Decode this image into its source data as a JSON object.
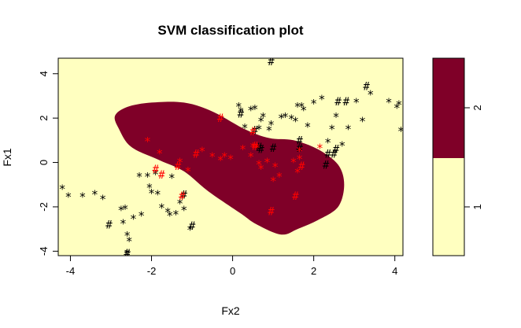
{
  "chart_data": {
    "type": "scatter",
    "title": "SVM classification plot",
    "xlabel": "Fx2",
    "ylabel": "Fx1",
    "xlim": [
      -4.3,
      4.2
    ],
    "ylim": [
      -4.2,
      4.7
    ],
    "xticks": [
      "-4",
      "-2",
      "0",
      "2",
      "4"
    ],
    "xtick_values": [
      -4,
      -2,
      0,
      2,
      4
    ],
    "yticks": [
      "-4",
      "-2",
      "0",
      "2",
      "4"
    ],
    "ytick_values": [
      -4,
      -2,
      0,
      2,
      4
    ],
    "colors": {
      "class1_region": "#ffffc0",
      "class2_region": "#7f0028",
      "class1_points": "#000000",
      "class2_points": "#ff0000"
    },
    "legend": {
      "position": "right",
      "levels": [
        "1",
        "2"
      ]
    },
    "decision_region_class2_outline": [
      [
        -2.8,
        1.5
      ],
      [
        -2.9,
        2.1
      ],
      [
        -2.6,
        2.5
      ],
      [
        -2.0,
        2.7
      ],
      [
        -1.2,
        2.7
      ],
      [
        -0.5,
        2.3
      ],
      [
        0.3,
        1.5
      ],
      [
        0.9,
        1.1
      ],
      [
        1.5,
        1.0
      ],
      [
        2.1,
        0.6
      ],
      [
        2.6,
        -0.1
      ],
      [
        2.75,
        -1.0
      ],
      [
        2.6,
        -2.0
      ],
      [
        2.1,
        -2.6
      ],
      [
        1.6,
        -3.0
      ],
      [
        1.2,
        -3.25
      ],
      [
        0.6,
        -2.8
      ],
      [
        0.2,
        -2.3
      ],
      [
        -0.6,
        -1.3
      ],
      [
        -1.2,
        -0.4
      ],
      [
        -1.8,
        0.1
      ],
      [
        -2.5,
        0.7
      ]
    ],
    "series": [
      {
        "name": "class 1",
        "x": [
          -4.2,
          -4.05,
          -3.7,
          -3.4,
          -3.2,
          -2.75,
          -2.65,
          -2.7,
          -2.6,
          -2.55,
          -2.6,
          -2.45,
          -2.25,
          -2.05,
          -2.0,
          -1.85,
          -1.75,
          -1.6,
          -1.55,
          -1.4,
          -1.3,
          -1.2,
          -1.05,
          -1.5,
          -2.1,
          -2.3,
          -1.9,
          0.15,
          0.2,
          0.3,
          0.45,
          0.55,
          0.65,
          0.7,
          0.75,
          0.9,
          0.95,
          1.2,
          1.3,
          1.45,
          1.55,
          1.6,
          1.7,
          1.75,
          1.85,
          2.0,
          2.2,
          2.35,
          2.45,
          2.55,
          2.7,
          2.85,
          3.05,
          3.2,
          3.4,
          3.85,
          4.1,
          4.15,
          4.05,
          0.2,
          1.65,
          1.65,
          0.7,
          0.55,
          0.65,
          1.0,
          2.35,
          2.5,
          2.55,
          2.6,
          2.8,
          3.3,
          -3.05,
          -2.6,
          -1.2,
          -1.0,
          0.95,
          2.3
        ],
        "y": [
          -1.1,
          -1.45,
          -1.45,
          -1.35,
          -1.55,
          -2.05,
          -2.0,
          -2.65,
          -3.2,
          -3.45,
          -4.0,
          -2.45,
          -2.3,
          -1.05,
          -1.3,
          -1.35,
          -1.95,
          -2.15,
          -2.3,
          -2.25,
          -1.75,
          -2.05,
          -2.95,
          -0.6,
          -0.55,
          -0.55,
          -0.45,
          2.6,
          2.4,
          1.65,
          2.45,
          2.5,
          1.6,
          1.95,
          2.15,
          1.55,
          1.8,
          2.1,
          2.15,
          2.05,
          1.95,
          2.6,
          2.6,
          2.45,
          1.7,
          2.75,
          2.95,
          1.0,
          1.6,
          2.15,
          0.85,
          1.6,
          2.8,
          1.95,
          3.15,
          2.8,
          2.7,
          1.5,
          2.55,
          2.2,
          0.65,
          1.0,
          0.6,
          1.45,
          0.7,
          0.65,
          0.4,
          0.4,
          0.6,
          2.75,
          2.75,
          3.45,
          -2.8,
          -4.1,
          -1.45,
          -2.85,
          4.55,
          -0.1
        ],
        "markers": [
          "*",
          "*",
          "*",
          "*",
          "*",
          "*",
          "*",
          "*",
          "*",
          "*",
          "*",
          "*",
          "*",
          "*",
          "*",
          "*",
          "*",
          "*",
          "*",
          "*",
          "*",
          "*",
          "*",
          "*",
          "*",
          "*",
          "*",
          "*",
          "*",
          "*",
          "*",
          "*",
          "*",
          "*",
          "*",
          "*",
          "*",
          "*",
          "*",
          "*",
          "*",
          "*",
          "*",
          "*",
          "*",
          "*",
          "*",
          "*",
          "*",
          "*",
          "*",
          "*",
          "*",
          "*",
          "*",
          "*",
          "*",
          "*",
          "*",
          "#",
          "#",
          "#",
          "#",
          "#",
          "#",
          "#",
          "#",
          "#",
          "#",
          "#",
          "#",
          "#",
          "#",
          "#",
          "#",
          "#",
          "#",
          "#"
        ]
      },
      {
        "name": "class 2",
        "x": [
          -2.1,
          -1.8,
          -1.3,
          -1.1,
          -0.75,
          -0.5,
          -0.3,
          -0.2,
          -0.05,
          0.25,
          0.45,
          0.5,
          0.6,
          0.65,
          0.7,
          0.85,
          1.0,
          1.05,
          1.15,
          1.5,
          1.6,
          1.65,
          1.65,
          2.15,
          -1.9,
          -1.75,
          -1.35,
          -1.25,
          -0.9,
          -0.3,
          0.5,
          0.55,
          1.55,
          1.7,
          0.95
        ],
        "y": [
          1.05,
          0.5,
          0.1,
          -0.3,
          0.6,
          0.35,
          0.2,
          0.35,
          0.25,
          0.7,
          0.35,
          0.8,
          0.75,
          0.0,
          -0.2,
          0.1,
          -0.75,
          -0.1,
          -0.55,
          0.1,
          -0.35,
          0.25,
          0.6,
          0.75,
          -0.3,
          -0.55,
          -0.15,
          -1.5,
          0.4,
          2.0,
          1.4,
          0.75,
          -1.5,
          -0.15,
          -2.2
        ],
        "markers": [
          "*",
          "*",
          "*",
          "*",
          "*",
          "*",
          "*",
          "*",
          "*",
          "*",
          "*",
          "*",
          "*",
          "*",
          "*",
          "*",
          "*",
          "*",
          "*",
          "*",
          "*",
          "*",
          "*",
          "*",
          "#",
          "#",
          "#",
          "#",
          "#",
          "#",
          "#",
          "#",
          "#",
          "#",
          "#"
        ]
      }
    ]
  }
}
